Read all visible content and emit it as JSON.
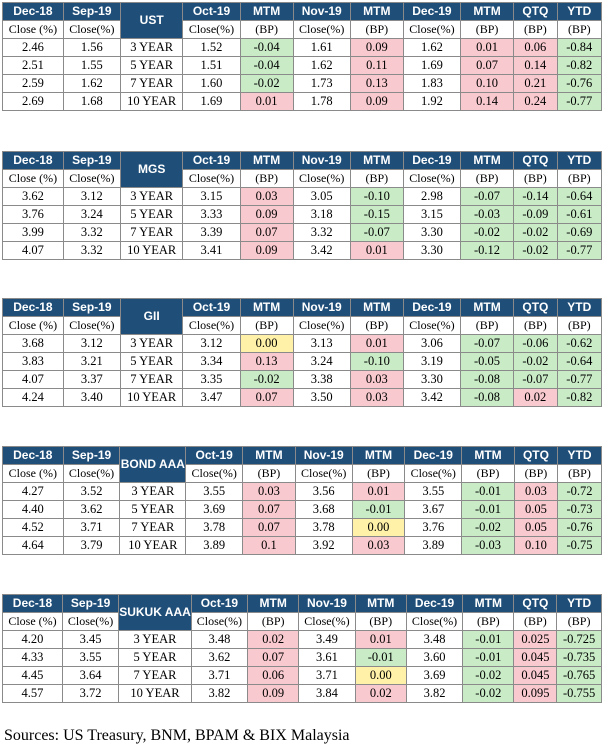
{
  "header": [
    "Dec-18",
    "Sep-19",
    "",
    "Oct-19",
    "MTM",
    "Nov-19",
    "MTM",
    "Dec-19",
    "MTM",
    "QTQ",
    "YTD"
  ],
  "subheader": [
    "Close (%)",
    "Close(%)",
    "",
    "Close(%)",
    "(BP)",
    "Close(%)",
    "(BP)",
    "Close(%)",
    "(BP)",
    "(BP)",
    "(BP)"
  ],
  "colors": {
    "header_bg": "#1f4e79",
    "name_bg": "#dde8f3",
    "positive": "#f8c9ce",
    "negative": "#c9ecc7",
    "zero": "#fff2a8"
  },
  "tables": [
    {
      "name": "UST",
      "rows": [
        [
          "2.46",
          "1.56",
          "3 YEAR",
          "1.52",
          "-0.04",
          "1.61",
          "0.09",
          "1.62",
          "0.01",
          "0.06",
          "-0.84"
        ],
        [
          "2.51",
          "1.55",
          "5 YEAR",
          "1.51",
          "-0.04",
          "1.62",
          "0.11",
          "1.69",
          "0.07",
          "0.14",
          "-0.82"
        ],
        [
          "2.59",
          "1.62",
          "7 YEAR",
          "1.60",
          "-0.02",
          "1.73",
          "0.13",
          "1.83",
          "0.10",
          "0.21",
          "-0.76"
        ],
        [
          "2.69",
          "1.68",
          "10 YEAR",
          "1.69",
          "0.01",
          "1.78",
          "0.09",
          "1.92",
          "0.14",
          "0.24",
          "-0.77"
        ]
      ]
    },
    {
      "name": "MGS",
      "rows": [
        [
          "3.62",
          "3.12",
          "3 YEAR",
          "3.15",
          "0.03",
          "3.05",
          "-0.10",
          "2.98",
          "-0.07",
          "-0.14",
          "-0.64"
        ],
        [
          "3.76",
          "3.24",
          "5 YEAR",
          "3.33",
          "0.09",
          "3.18",
          "-0.15",
          "3.15",
          "-0.03",
          "-0.09",
          "-0.61"
        ],
        [
          "3.99",
          "3.32",
          "7 YEAR",
          "3.39",
          "0.07",
          "3.32",
          "-0.07",
          "3.30",
          "-0.02",
          "-0.02",
          "-0.69"
        ],
        [
          "4.07",
          "3.32",
          "10 YEAR",
          "3.41",
          "0.09",
          "3.42",
          "0.01",
          "3.30",
          "-0.12",
          "-0.02",
          "-0.77"
        ]
      ]
    },
    {
      "name": "GII",
      "rows": [
        [
          "3.68",
          "3.12",
          "3 YEAR",
          "3.12",
          "0.00",
          "3.13",
          "0.01",
          "3.06",
          "-0.07",
          "-0.06",
          "-0.62"
        ],
        [
          "3.83",
          "3.21",
          "5 YEAR",
          "3.34",
          "0.13",
          "3.24",
          "-0.10",
          "3.19",
          "-0.05",
          "-0.02",
          "-0.64"
        ],
        [
          "4.07",
          "3.37",
          "7 YEAR",
          "3.35",
          "-0.02",
          "3.38",
          "0.03",
          "3.30",
          "-0.08",
          "-0.07",
          "-0.77"
        ],
        [
          "4.24",
          "3.40",
          "10 YEAR",
          "3.47",
          "0.07",
          "3.50",
          "0.03",
          "3.42",
          "-0.08",
          "0.02",
          "-0.82"
        ]
      ]
    },
    {
      "name": "BOND AAA",
      "rows": [
        [
          "4.27",
          "3.52",
          "3 YEAR",
          "3.55",
          "0.03",
          "3.56",
          "0.01",
          "3.55",
          "-0.01",
          "0.03",
          "-0.72"
        ],
        [
          "4.40",
          "3.62",
          "5 YEAR",
          "3.69",
          "0.07",
          "3.68",
          "-0.01",
          "3.67",
          "-0.01",
          "0.05",
          "-0.73"
        ],
        [
          "4.52",
          "3.71",
          "7 YEAR",
          "3.78",
          "0.07",
          "3.78",
          "0.00",
          "3.76",
          "-0.02",
          "0.05",
          "-0.76"
        ],
        [
          "4.64",
          "3.79",
          "10 YEAR",
          "3.89",
          "0.1",
          "3.92",
          "0.03",
          "3.89",
          "-0.03",
          "0.10",
          "-0.75"
        ]
      ]
    },
    {
      "name": "SUKUK AAA",
      "rows": [
        [
          "4.20",
          "3.45",
          "3 YEAR",
          "3.48",
          "0.02",
          "3.49",
          "0.01",
          "3.48",
          "-0.01",
          "0.025",
          "-0.725"
        ],
        [
          "4.33",
          "3.55",
          "5 YEAR",
          "3.62",
          "0.07",
          "3.61",
          "-0.01",
          "3.60",
          "-0.01",
          "0.045",
          "-0.735"
        ],
        [
          "4.45",
          "3.64",
          "7 YEAR",
          "3.71",
          "0.06",
          "3.71",
          "0.00",
          "3.69",
          "-0.02",
          "0.045",
          "-0.765"
        ],
        [
          "4.57",
          "3.72",
          "10 YEAR",
          "3.82",
          "0.09",
          "3.84",
          "0.02",
          "3.82",
          "-0.02",
          "0.095",
          "-0.755"
        ]
      ]
    }
  ],
  "source": "Sources: US Treasury, BNM, BPAM & BIX Malaysia"
}
